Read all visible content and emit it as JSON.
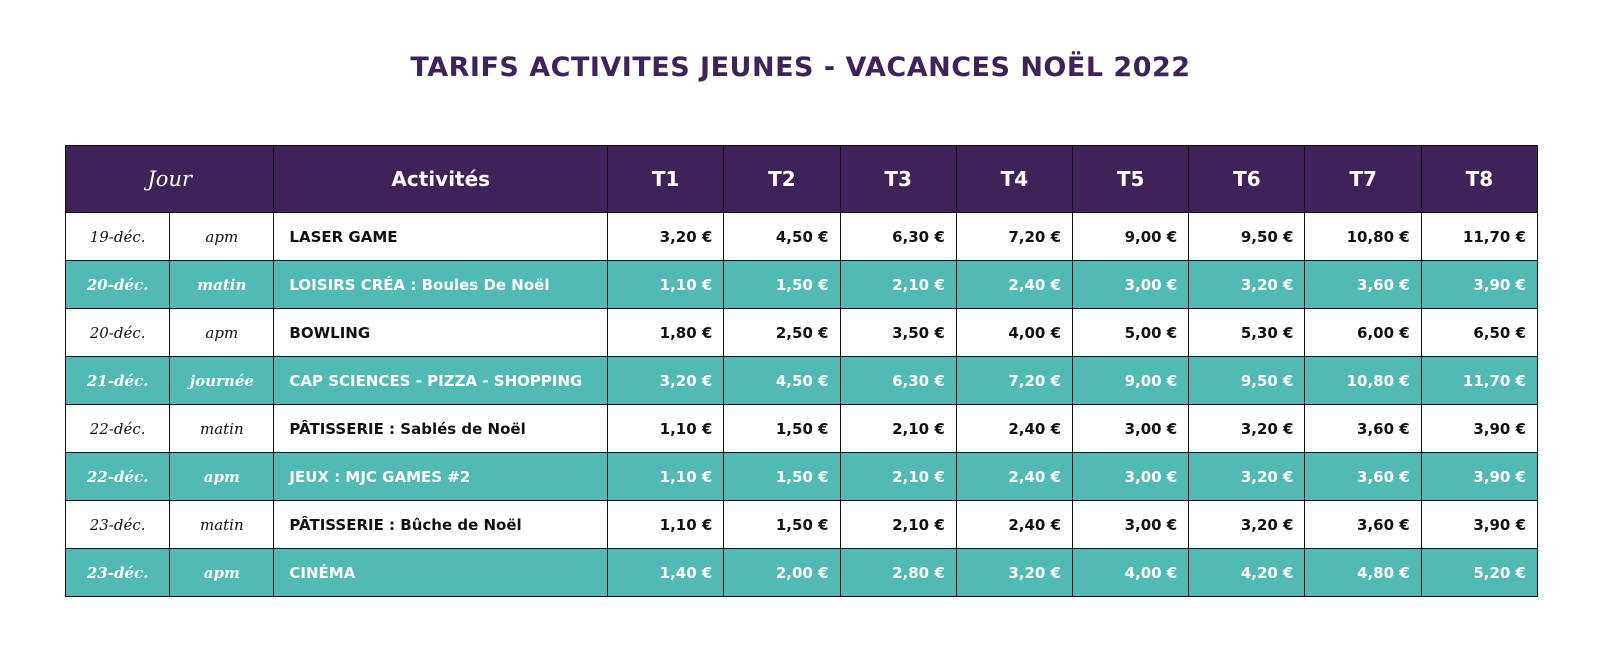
{
  "title": "TARIFS ACTIVITES JEUNES - VACANCES NOËL 2022",
  "header": {
    "jour": "Jour",
    "activites": "Activités",
    "tiers": [
      "T1",
      "T2",
      "T3",
      "T4",
      "T5",
      "T6",
      "T7",
      "T8"
    ]
  },
  "colors": {
    "header_bg": "#3e2359",
    "teal_row": "#51bab5",
    "title": "#3e2359"
  },
  "rows": [
    {
      "date": "19-déc.",
      "period": "apm",
      "activity": "LASER GAME",
      "style": "white",
      "prices": [
        "3,20 €",
        "4,50 €",
        "6,30 €",
        "7,20 €",
        "9,00 €",
        "9,50 €",
        "10,80 €",
        "11,70 €"
      ]
    },
    {
      "date": "20-déc.",
      "period": "matin",
      "activity": "LOISIRS CRÉA : Boules De Noël",
      "style": "teal",
      "prices": [
        "1,10 €",
        "1,50 €",
        "2,10 €",
        "2,40 €",
        "3,00 €",
        "3,20 €",
        "3,60 €",
        "3,90 €"
      ]
    },
    {
      "date": "20-déc.",
      "period": "apm",
      "activity": "BOWLING",
      "style": "white",
      "prices": [
        "1,80 €",
        "2,50 €",
        "3,50 €",
        "4,00 €",
        "5,00 €",
        "5,30 €",
        "6,00 €",
        "6,50 €"
      ]
    },
    {
      "date": "21-déc.",
      "period": "journée",
      "activity": "CAP SCIENCES - PIZZA - SHOPPING",
      "style": "teal",
      "prices": [
        "3,20 €",
        "4,50 €",
        "6,30 €",
        "7,20 €",
        "9,00 €",
        "9,50 €",
        "10,80 €",
        "11,70 €"
      ]
    },
    {
      "date": "22-déc.",
      "period": "matin",
      "activity": "PÂTISSERIE : Sablés de Noël",
      "style": "white",
      "prices": [
        "1,10 €",
        "1,50 €",
        "2,10 €",
        "2,40 €",
        "3,00 €",
        "3,20 €",
        "3,60 €",
        "3,90 €"
      ]
    },
    {
      "date": "22-déc.",
      "period": "apm",
      "activity": "JEUX : MJC GAMES #2",
      "style": "teal",
      "prices": [
        "1,10 €",
        "1,50 €",
        "2,10 €",
        "2,40 €",
        "3,00 €",
        "3,20 €",
        "3,60 €",
        "3,90 €"
      ]
    },
    {
      "date": "23-déc.",
      "period": "matin",
      "activity": "PÂTISSERIE : Bûche de Noël",
      "style": "white",
      "prices": [
        "1,10 €",
        "1,50 €",
        "2,10 €",
        "2,40 €",
        "3,00 €",
        "3,20 €",
        "3,60 €",
        "3,90 €"
      ]
    },
    {
      "date": "23-déc.",
      "period": "apm",
      "activity": "CINÉMA",
      "style": "teal",
      "prices": [
        "1,40 €",
        "2,00 €",
        "2,80 €",
        "3,20 €",
        "4,00 €",
        "4,20 €",
        "4,80 €",
        "5,20 €"
      ]
    }
  ]
}
